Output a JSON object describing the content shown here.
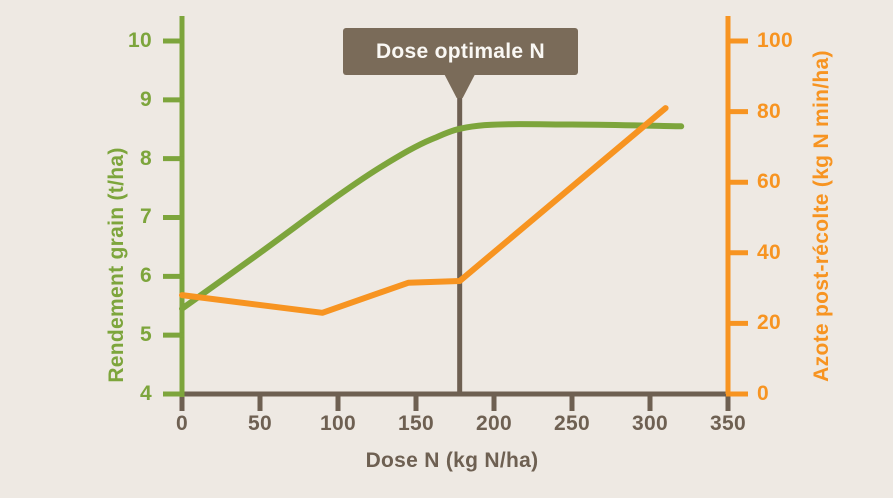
{
  "colors": {
    "background": "#EEE9E3",
    "green": "#7DA53C",
    "orange": "#F79421",
    "brown_axis": "#6E6052",
    "callout_brown": "#7A6B59",
    "callout_text": "#FAF8F4"
  },
  "chart_data": {
    "type": "line",
    "grid": false,
    "legend": "none",
    "x_axis": {
      "label": "Dose N (kg N/ha)",
      "min": 0,
      "max": 350,
      "ticks": [
        0,
        50,
        100,
        150,
        200,
        250,
        300,
        350
      ]
    },
    "y_axis_left": {
      "label": "Rendement grain (t/ha)",
      "min": 4,
      "max": 10,
      "ticks": [
        10,
        9,
        8,
        7,
        6,
        5,
        4
      ],
      "color": "#7DA53C"
    },
    "y_axis_right": {
      "label": "Azote post-récolte (kg N min/ha)",
      "min": 0,
      "max": 100,
      "ticks": [
        100,
        80,
        60,
        40,
        20,
        0
      ],
      "color": "#F79421"
    },
    "annotation": {
      "label": "Dose optimale N",
      "x": 178
    },
    "series": [
      {
        "name": "Rendement grain",
        "axis": "left",
        "color": "#7DA53C",
        "smooth": true,
        "points": [
          [
            0,
            5.45
          ],
          [
            50,
            6.4
          ],
          [
            100,
            7.37
          ],
          [
            130,
            7.9
          ],
          [
            160,
            8.33
          ],
          [
            190,
            8.56
          ],
          [
            250,
            8.58
          ],
          [
            320,
            8.55
          ]
        ]
      },
      {
        "name": "Azote post-récolte",
        "axis": "right",
        "color": "#F79421",
        "smooth": false,
        "points": [
          [
            0,
            28
          ],
          [
            90,
            23
          ],
          [
            145,
            31.5
          ],
          [
            178,
            32
          ],
          [
            310,
            81
          ]
        ]
      }
    ]
  }
}
